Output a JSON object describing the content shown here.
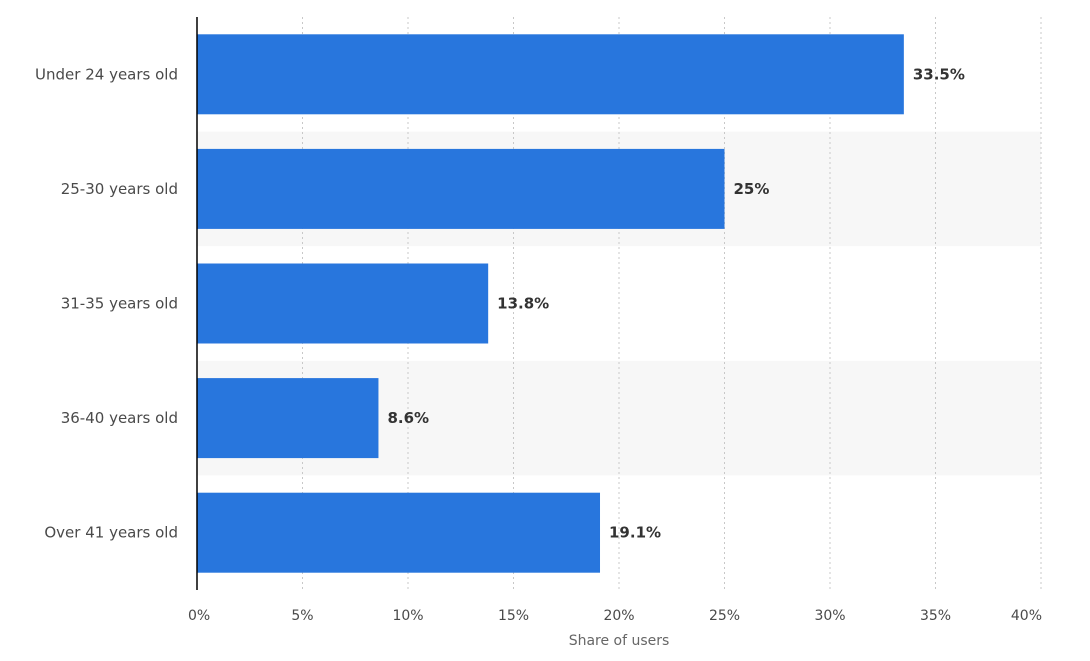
{
  "chart_data": {
    "type": "bar",
    "orientation": "horizontal",
    "categories": [
      "Under 24 years old",
      "25-30 years old",
      "31-35 years old",
      "36-40 years old",
      "Over 41 years old"
    ],
    "values": [
      33.5,
      25,
      13.8,
      8.6,
      19.1
    ],
    "value_labels": [
      "33.5%",
      "25%",
      "13.8%",
      "8.6%",
      "19.1%"
    ],
    "x_ticks": [
      0,
      5,
      10,
      15,
      20,
      25,
      30,
      35,
      40
    ],
    "x_tick_labels": [
      "0%",
      "5%",
      "10%",
      "15%",
      "20%",
      "25%",
      "30%",
      "35%",
      "40%"
    ],
    "xlim": [
      0,
      40
    ],
    "xlabel": "Share of users",
    "ylabel": "",
    "title": "",
    "grid": true,
    "grid_style": "dotted vertical",
    "alternating_row_bands": true,
    "colors": {
      "bar": "#2876dd",
      "band": "#f7f7f7",
      "grid": "#c8c8c8",
      "axis": "#000000"
    }
  }
}
